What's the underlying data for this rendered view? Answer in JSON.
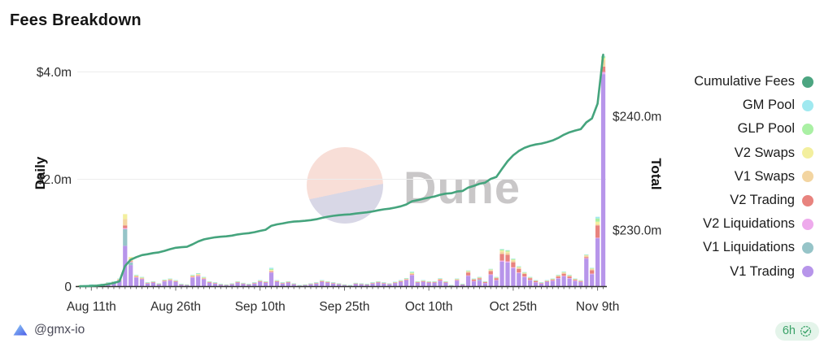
{
  "title": "Fees Breakdown",
  "watermark": {
    "text": "Dune"
  },
  "footer": {
    "author": "@gmx-io",
    "refresh_age": "6h"
  },
  "colors": {
    "background": "#ffffff",
    "gridline": "#ececec",
    "axis_line": "#2f2f2f",
    "tick_text": "#2d2d2d",
    "watermark_text": "#c9c7c8",
    "watermark_circle_top": "#f8ded7",
    "watermark_circle_bottom": "#d8d7e6",
    "badge_bg": "#e4f4ea",
    "badge_text": "#3aa268",
    "author_text": "#4a4a58",
    "gmx_logo_light": "#93d3f5",
    "gmx_logo_dark": "#4a5ae8"
  },
  "legend": {
    "items": [
      {
        "label": "Cumulative Fees",
        "color": "#4ca581"
      },
      {
        "label": "GM Pool",
        "color": "#a0e9f0"
      },
      {
        "label": "GLP Pool",
        "color": "#aaf0a4"
      },
      {
        "label": "V2 Swaps",
        "color": "#f3ef9e"
      },
      {
        "label": "V1 Swaps",
        "color": "#f3d5a1"
      },
      {
        "label": "V2 Trading",
        "color": "#e8837e"
      },
      {
        "label": "V2 Liquidations",
        "color": "#eeaaec"
      },
      {
        "label": "V1 Liquidations",
        "color": "#96c4c8"
      },
      {
        "label": "V1 Trading",
        "color": "#b795ea"
      }
    ]
  },
  "chart_data": {
    "type": "bar",
    "subtype": "stacked-daily-bars-with-cumulative-line",
    "title": "Fees Breakdown",
    "grid": "horizontal-only",
    "legend_position": "right",
    "left_axis": {
      "label": "Daily",
      "unit": "$m",
      "range": [
        0,
        4.35
      ],
      "ticks": [
        {
          "value": 4.0,
          "label": "$4.0m",
          "grid": true
        },
        {
          "value": 2.0,
          "label": "$2.0m",
          "grid": true
        },
        {
          "value": 0,
          "label": "0",
          "grid": false
        }
      ]
    },
    "right_axis": {
      "label": "Total",
      "unit": "$m",
      "range": [
        225,
        245.5
      ],
      "ticks": [
        {
          "value": 240,
          "label": "$240.0m"
        },
        {
          "value": 230,
          "label": "$230.0m"
        }
      ]
    },
    "x_ticks": [
      {
        "index": 2,
        "label": "Aug 11th"
      },
      {
        "index": 17,
        "label": "Aug 26th"
      },
      {
        "index": 32,
        "label": "Sep 10th"
      },
      {
        "index": 47,
        "label": "Sep 25th"
      },
      {
        "index": 62,
        "label": "Oct 10th"
      },
      {
        "index": 77,
        "label": "Oct 25th"
      },
      {
        "index": 92,
        "label": "Nov 9th"
      }
    ],
    "bar_series": [
      {
        "name": "V1 Trading",
        "color": "#b795ea"
      },
      {
        "name": "V1 Liquidations",
        "color": "#96c4c8"
      },
      {
        "name": "V2 Liquidations",
        "color": "#eeaaec"
      },
      {
        "name": "V2 Trading",
        "color": "#e8837e"
      },
      {
        "name": "V1 Swaps",
        "color": "#f3d5a1"
      },
      {
        "name": "V2 Swaps",
        "color": "#f3ef9e"
      },
      {
        "name": "GLP Pool",
        "color": "#aaf0a4"
      },
      {
        "name": "GM Pool",
        "color": "#a0e9f0"
      }
    ],
    "line_series": {
      "name": "Cumulative Fees",
      "color": "#45a47d",
      "start_value_m": 225.0
    },
    "bars_m": [
      [
        0.015,
        0,
        0.001,
        0.001,
        0.001,
        0.001,
        0.001,
        0
      ],
      [
        0.022,
        0,
        0.002,
        0.001,
        0.002,
        0.001,
        0.001,
        0.001
      ],
      [
        0.03,
        0,
        0.002,
        0.001,
        0.003,
        0.002,
        0.001,
        0.001
      ],
      [
        0.022,
        0,
        0.002,
        0.001,
        0.002,
        0.001,
        0.001,
        0.001
      ],
      [
        0.037,
        0,
        0.003,
        0.002,
        0.004,
        0.002,
        0.002,
        0.001
      ],
      [
        0.06,
        0,
        0.004,
        0.002,
        0.006,
        0.003,
        0.003,
        0.002
      ],
      [
        0.075,
        0,
        0.005,
        0.003,
        0.007,
        0.004,
        0.004,
        0.002
      ],
      [
        0.112,
        0,
        0.008,
        0.005,
        0.01,
        0.006,
        0.006,
        0.003
      ],
      [
        0.76,
        0.31,
        0.02,
        0.05,
        0.12,
        0.09,
        0,
        0
      ],
      [
        0.4,
        0.05,
        0.01,
        0.01,
        0.04,
        0.04,
        0,
        0
      ],
      [
        0.165,
        0,
        0.011,
        0.007,
        0.015,
        0.009,
        0.009,
        0.004
      ],
      [
        0.135,
        0,
        0.009,
        0.005,
        0.013,
        0.007,
        0.007,
        0.004
      ],
      [
        0.06,
        0,
        0.004,
        0.002,
        0.006,
        0.003,
        0.003,
        0.002
      ],
      [
        0.075,
        0,
        0.005,
        0.003,
        0.007,
        0.004,
        0.004,
        0.002
      ],
      [
        0.045,
        0,
        0.003,
        0.002,
        0.004,
        0.002,
        0.002,
        0.001
      ],
      [
        0.097,
        0,
        0.007,
        0.004,
        0.009,
        0.005,
        0.005,
        0.003
      ],
      [
        0.112,
        0,
        0.008,
        0.005,
        0.01,
        0.006,
        0.006,
        0.003
      ],
      [
        0.09,
        0,
        0.006,
        0.004,
        0.008,
        0.005,
        0.005,
        0.002
      ],
      [
        0.037,
        0,
        0.003,
        0.002,
        0.004,
        0.002,
        0.002,
        0.001
      ],
      [
        0.03,
        0,
        0.002,
        0.001,
        0.003,
        0.002,
        0.001,
        0.001
      ],
      [
        0.165,
        0,
        0.011,
        0.007,
        0.015,
        0.009,
        0.009,
        0.004
      ],
      [
        0.187,
        0,
        0.013,
        0.008,
        0.017,
        0.01,
        0.01,
        0.005
      ],
      [
        0.135,
        0,
        0.009,
        0.005,
        0.013,
        0.007,
        0.007,
        0.004
      ],
      [
        0.075,
        0,
        0.005,
        0.003,
        0.007,
        0.004,
        0.004,
        0.002
      ],
      [
        0.06,
        0,
        0.004,
        0.002,
        0.006,
        0.003,
        0.003,
        0.002
      ],
      [
        0.037,
        0,
        0.003,
        0.002,
        0.004,
        0.002,
        0.002,
        0.001
      ],
      [
        0.03,
        0,
        0.002,
        0.001,
        0.003,
        0.002,
        0.001,
        0.001
      ],
      [
        0.045,
        0,
        0.003,
        0.002,
        0.004,
        0.002,
        0.002,
        0.001
      ],
      [
        0.075,
        0,
        0.005,
        0.003,
        0.007,
        0.004,
        0.004,
        0.002
      ],
      [
        0.052,
        0,
        0.004,
        0.002,
        0.005,
        0.003,
        0.003,
        0.001
      ],
      [
        0.037,
        0,
        0.003,
        0.002,
        0.004,
        0.002,
        0.002,
        0.001
      ],
      [
        0.06,
        0,
        0.004,
        0.002,
        0.006,
        0.003,
        0.003,
        0.002
      ],
      [
        0.09,
        0,
        0.006,
        0.004,
        0.008,
        0.005,
        0.005,
        0.002
      ],
      [
        0.075,
        0,
        0.005,
        0.003,
        0.007,
        0.004,
        0.004,
        0.002
      ],
      [
        0.26,
        0,
        0.01,
        0.01,
        0.02,
        0.01,
        0.02,
        0.02
      ],
      [
        0.09,
        0,
        0.006,
        0.004,
        0.008,
        0.005,
        0.005,
        0.002
      ],
      [
        0.06,
        0,
        0.004,
        0.002,
        0.006,
        0.003,
        0.003,
        0.002
      ],
      [
        0.075,
        0,
        0.005,
        0.003,
        0.007,
        0.004,
        0.004,
        0.002
      ],
      [
        0.045,
        0,
        0.003,
        0.002,
        0.004,
        0.002,
        0.002,
        0.001
      ],
      [
        0.022,
        0,
        0.002,
        0.001,
        0.002,
        0.001,
        0.001,
        0.001
      ],
      [
        0.03,
        0,
        0.002,
        0.001,
        0.003,
        0.002,
        0.001,
        0.001
      ],
      [
        0.045,
        0,
        0.003,
        0.002,
        0.004,
        0.002,
        0.002,
        0.001
      ],
      [
        0.06,
        0,
        0.004,
        0.002,
        0.006,
        0.003,
        0.003,
        0.002
      ],
      [
        0.09,
        0,
        0.006,
        0.004,
        0.008,
        0.005,
        0.005,
        0.002
      ],
      [
        0.075,
        0,
        0.005,
        0.003,
        0.007,
        0.004,
        0.004,
        0.002
      ],
      [
        0.06,
        0,
        0.004,
        0.002,
        0.006,
        0.003,
        0.003,
        0.002
      ],
      [
        0.045,
        0,
        0.003,
        0.002,
        0.004,
        0.002,
        0.002,
        0.001
      ],
      [
        0.03,
        0,
        0.002,
        0.001,
        0.003,
        0.002,
        0.001,
        0.001
      ],
      [
        0.022,
        0,
        0.002,
        0.001,
        0.002,
        0.001,
        0.001,
        0.001
      ],
      [
        0.052,
        0,
        0.004,
        0.002,
        0.005,
        0.003,
        0.003,
        0.001
      ],
      [
        0.045,
        0,
        0.003,
        0.002,
        0.004,
        0.002,
        0.002,
        0.001
      ],
      [
        0.037,
        0,
        0.003,
        0.002,
        0.004,
        0.002,
        0.002,
        0.001
      ],
      [
        0.06,
        0,
        0.004,
        0.002,
        0.006,
        0.003,
        0.003,
        0.002
      ],
      [
        0.075,
        0,
        0.005,
        0.003,
        0.007,
        0.004,
        0.004,
        0.002
      ],
      [
        0.06,
        0,
        0.004,
        0.002,
        0.006,
        0.003,
        0.003,
        0.002
      ],
      [
        0.045,
        0,
        0.003,
        0.002,
        0.004,
        0.002,
        0.002,
        0.001
      ],
      [
        0.067,
        0,
        0.005,
        0.003,
        0.006,
        0.004,
        0.004,
        0.002
      ],
      [
        0.09,
        0,
        0.006,
        0.004,
        0.008,
        0.005,
        0.005,
        0.002
      ],
      [
        0.12,
        0,
        0.008,
        0.005,
        0.011,
        0.006,
        0.006,
        0.003
      ],
      [
        0.21,
        0,
        0.01,
        0.008,
        0.015,
        0.011,
        0.015,
        0.011
      ],
      [
        0.075,
        0,
        0.005,
        0.003,
        0.007,
        0.004,
        0.004,
        0.002
      ],
      [
        0.09,
        0,
        0.006,
        0.004,
        0.008,
        0.005,
        0.005,
        0.002
      ],
      [
        0.075,
        0,
        0.005,
        0.003,
        0.007,
        0.004,
        0.004,
        0.002
      ],
      [
        0.075,
        0,
        0.005,
        0.003,
        0.007,
        0.004,
        0.004,
        0.002
      ],
      [
        0.105,
        0,
        0.007,
        0.02,
        0.01,
        0.006,
        0.005,
        0.002
      ],
      [
        0.075,
        0,
        0.005,
        0.003,
        0.007,
        0.004,
        0.004,
        0.002
      ],
      [
        0.022,
        0,
        0.002,
        0.001,
        0.002,
        0.001,
        0.001,
        0.001
      ],
      [
        0.112,
        0,
        0.008,
        0.005,
        0.01,
        0.006,
        0.006,
        0.003
      ],
      [
        0.037,
        0,
        0.003,
        0.002,
        0.004,
        0.002,
        0.002,
        0.001
      ],
      [
        0.198,
        0,
        0.009,
        0.054,
        0.018,
        0.009,
        0.009,
        0.003
      ],
      [
        0.099,
        0,
        0.005,
        0.027,
        0.009,
        0.005,
        0.004,
        0.001
      ],
      [
        0.11,
        0.02,
        0.005,
        0.02,
        0.011,
        0.005,
        0.005,
        0.004
      ],
      [
        0.066,
        0,
        0.003,
        0.018,
        0.006,
        0.003,
        0.003,
        0.001
      ],
      [
        0.218,
        0,
        0.01,
        0.059,
        0.02,
        0.01,
        0.01,
        0.003
      ],
      [
        0.119,
        0,
        0.005,
        0.032,
        0.011,
        0.005,
        0.005,
        0.002
      ],
      [
        0.462,
        0,
        0.021,
        0.126,
        0.042,
        0.021,
        0.021,
        0.007
      ],
      [
        0.449,
        0,
        0.02,
        0.122,
        0.041,
        0.02,
        0.02,
        0.007
      ],
      [
        0.343,
        0,
        0.016,
        0.094,
        0.031,
        0.016,
        0.016,
        0.005
      ],
      [
        0.251,
        0,
        0.011,
        0.068,
        0.023,
        0.011,
        0.011,
        0.004
      ],
      [
        0.178,
        0,
        0.008,
        0.049,
        0.016,
        0.008,
        0.008,
        0.003
      ],
      [
        0.119,
        0,
        0.005,
        0.032,
        0.011,
        0.005,
        0.005,
        0.002
      ],
      [
        0.079,
        0,
        0.004,
        0.022,
        0.007,
        0.004,
        0.003,
        0.001
      ],
      [
        0.06,
        0,
        0.004,
        0.002,
        0.006,
        0.003,
        0.003,
        0.002
      ],
      [
        0.09,
        0,
        0.006,
        0.004,
        0.008,
        0.005,
        0.005,
        0.002
      ],
      [
        0.105,
        0,
        0.007,
        0.015,
        0.012,
        0.005,
        0.004,
        0.002
      ],
      [
        0.15,
        0,
        0.008,
        0.03,
        0.015,
        0.008,
        0.006,
        0.003
      ],
      [
        0.19,
        0,
        0.01,
        0.04,
        0.02,
        0.008,
        0.008,
        0.004
      ],
      [
        0.15,
        0,
        0.008,
        0.03,
        0.015,
        0.008,
        0.006,
        0.003
      ],
      [
        0.105,
        0,
        0.007,
        0.015,
        0.012,
        0.005,
        0.004,
        0.002
      ],
      [
        0.085,
        0,
        0.005,
        0.012,
        0.008,
        0.004,
        0.004,
        0.002
      ],
      [
        0.52,
        0,
        0.01,
        0.02,
        0.03,
        0.008,
        0.008,
        0.004
      ],
      [
        0.231,
        0,
        0.01,
        0.063,
        0.021,
        0.01,
        0.01,
        0.004
      ],
      [
        0.9,
        0,
        0.01,
        0.23,
        0.02,
        0.05,
        0.06,
        0.03
      ],
      [
        3.96,
        0,
        0.04,
        0.1,
        0.12,
        0.04,
        0.03,
        0.01
      ]
    ]
  }
}
